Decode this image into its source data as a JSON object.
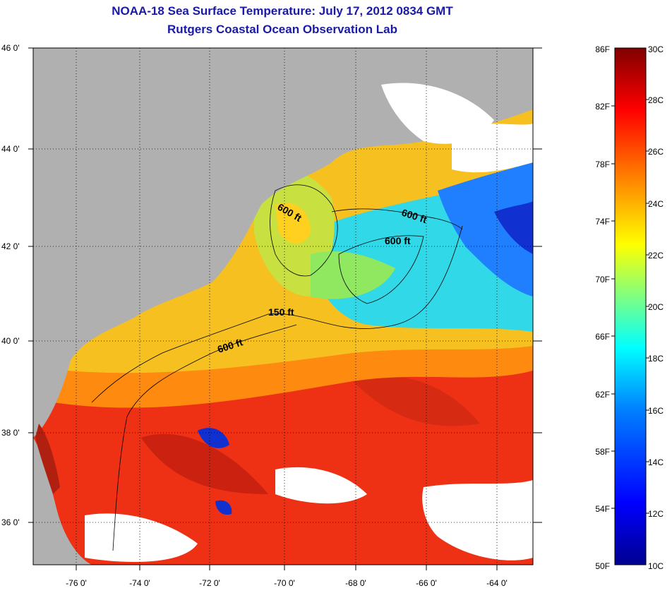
{
  "title": "NOAA-18 Sea Surface Temperature:  July 17, 2012 0834 GMT",
  "subtitle": "Rutgers Coastal Ocean Observation Lab",
  "lat_labels": [
    "46 0'",
    "44 0'",
    "42 0'",
    "40 0'",
    "38 0'",
    "36 0'"
  ],
  "lon_labels": [
    "-76 0'",
    "-74 0'",
    "-72 0'",
    "-70 0'",
    "-68 0'",
    "-66 0'",
    "-64 0'"
  ],
  "contour_labels": [
    "600 ft",
    "600 ft",
    "600 ft",
    "150 ft",
    "600 ft"
  ],
  "colorbar": {
    "fahrenheit": [
      "86F",
      "82F",
      "78F",
      "74F",
      "70F",
      "66F",
      "62F",
      "58F",
      "54F",
      "50F"
    ],
    "celsius": [
      "30C",
      "28C",
      "26C",
      "24C",
      "22C",
      "20C",
      "18C",
      "16C",
      "14C",
      "12C",
      "10C"
    ],
    "colors": [
      "#00008f",
      "#0000ff",
      "#0080ff",
      "#00ffff",
      "#80ff80",
      "#ffff00",
      "#ff8000",
      "#ff0000",
      "#800000"
    ]
  },
  "legend_colors": {
    "land": "#b0b0b0",
    "cloud": "#ffffff"
  }
}
